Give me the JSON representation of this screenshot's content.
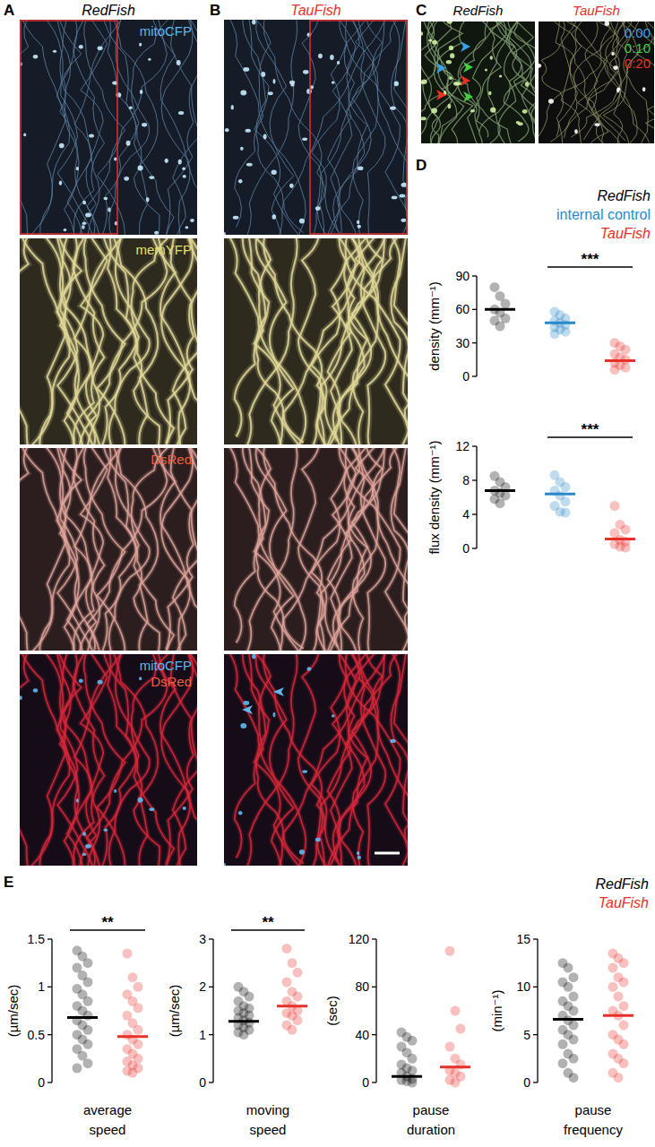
{
  "panel_labels": [
    "A",
    "B",
    "C",
    "D",
    "E"
  ],
  "images": [
    {
      "title": "RedFish",
      "title_color": "#000000",
      "rows": [
        {
          "texts": [
            {
              "text": "mitoCFP",
              "color": "#5fb8ef"
            }
          ]
        },
        {
          "texts": [
            {
              "text": "memYFP",
              "color": "#e8e070"
            }
          ]
        },
        {
          "texts": [
            {
              "text": "DsRed",
              "color": "#f06040"
            }
          ]
        },
        {
          "texts": [
            {
              "text": "mitoCFP",
              "color": "#5fb8ef"
            },
            {
              "text": "DsRed",
              "color": "#f06040"
            }
          ]
        }
      ]
    },
    {
      "title": "TauFish",
      "title_color": "#e8302a",
      "rows": []
    }
  ],
  "timelapse": {
    "titles": [
      {
        "text": "RedFish",
        "color": "#000000"
      },
      {
        "text": "TauFish",
        "color": "#e8302a"
      }
    ],
    "timestamps": [
      {
        "text": "0:00",
        "color": "#3aa0e8"
      },
      {
        "text": "0:10",
        "color": "#40d040"
      },
      {
        "text": "0:20",
        "color": "#f03020"
      }
    ]
  },
  "chart_data": [
    {
      "type": "dot",
      "y_label": "density (mm⁻¹)",
      "ylim": [
        0,
        90
      ],
      "yticks": [
        0,
        30,
        60,
        90
      ],
      "significance": {
        "label": "***",
        "groups": [
          1,
          2
        ]
      },
      "series": [
        {
          "name": "RedFish",
          "color": "#000000",
          "mean": 60,
          "values": [
            80,
            72,
            65,
            60,
            57,
            52,
            50,
            45
          ]
        },
        {
          "name": "internal control",
          "color": "#2b88c8",
          "mean": 48,
          "values": [
            58,
            55,
            52,
            50,
            48,
            46,
            44,
            42,
            40,
            38
          ]
        },
        {
          "name": "TauFish",
          "color": "#e8302a",
          "mean": 14,
          "values": [
            30,
            27,
            24,
            20,
            17,
            15,
            12,
            10,
            8,
            6
          ]
        }
      ]
    },
    {
      "type": "dot",
      "y_label": "flux density (mm⁻¹)",
      "ylim": [
        0,
        12
      ],
      "yticks": [
        0,
        4,
        8,
        12
      ],
      "significance": {
        "label": "***",
        "groups": [
          1,
          2
        ]
      },
      "series": [
        {
          "color": "#000000",
          "mean": 6.8,
          "values": [
            8.5,
            7.8,
            7.2,
            6.8,
            6.5,
            6.2,
            5.8,
            5.3
          ]
        },
        {
          "color": "#2b88c8",
          "mean": 6.4,
          "values": [
            8.6,
            7.8,
            7.2,
            6.8,
            6.2,
            5.5,
            5.0,
            4.3,
            4.2
          ]
        },
        {
          "color": "#e8302a",
          "mean": 1.1,
          "values": [
            5.0,
            2.8,
            2.2,
            1.8,
            1.0,
            0.8,
            0.5,
            0.2,
            0.1
          ]
        }
      ]
    },
    {
      "type": "dot",
      "y_label": "(µm/sec)",
      "x_label": "average speed",
      "ylim": [
        0,
        1.5
      ],
      "yticks": [
        0,
        0.5,
        1,
        1.5
      ],
      "significance": {
        "label": "**",
        "groups": [
          0,
          1
        ]
      },
      "series": [
        {
          "name": "RedFish",
          "color": "#000000",
          "mean": 0.68,
          "values": [
            1.38,
            1.32,
            1.25,
            1.2,
            1.12,
            1.05,
            0.98,
            0.92,
            0.85,
            0.8,
            0.75,
            0.7,
            0.65,
            0.6,
            0.55,
            0.5,
            0.45,
            0.4,
            0.35,
            0.28,
            0.2,
            0.15
          ]
        },
        {
          "name": "TauFish",
          "color": "#e8302a",
          "mean": 0.48,
          "values": [
            1.35,
            1.1,
            1.0,
            0.92,
            0.85,
            0.78,
            0.7,
            0.62,
            0.55,
            0.5,
            0.45,
            0.4,
            0.35,
            0.3,
            0.25,
            0.22,
            0.18,
            0.15,
            0.12,
            0.1
          ]
        }
      ]
    },
    {
      "type": "dot",
      "y_label": "(µm/sec)",
      "x_label": "moving speed",
      "ylim": [
        0,
        3
      ],
      "yticks": [
        0,
        1,
        2,
        3
      ],
      "significance": {
        "label": "**",
        "groups": [
          0,
          1
        ]
      },
      "series": [
        {
          "color": "#000000",
          "mean": 1.28,
          "values": [
            2.0,
            1.9,
            1.8,
            1.7,
            1.6,
            1.55,
            1.5,
            1.45,
            1.4,
            1.35,
            1.3,
            1.25,
            1.2,
            1.15,
            1.1,
            1.05,
            1.0
          ]
        },
        {
          "color": "#e8302a",
          "mean": 1.6,
          "values": [
            2.8,
            2.5,
            2.3,
            2.1,
            1.9,
            1.8,
            1.7,
            1.6,
            1.5,
            1.45,
            1.4,
            1.3,
            1.2,
            1.1
          ]
        }
      ]
    },
    {
      "type": "dot",
      "y_label": "(sec)",
      "x_label": "pause duration",
      "ylim": [
        0,
        120
      ],
      "yticks": [
        0,
        40,
        80,
        120
      ],
      "series": [
        {
          "color": "#000000",
          "mean": 5,
          "values": [
            42,
            38,
            35,
            30,
            25,
            20,
            15,
            12,
            10,
            8,
            5,
            3,
            2,
            1,
            0
          ]
        },
        {
          "color": "#e8302a",
          "mean": 13,
          "values": [
            110,
            60,
            45,
            30,
            20,
            15,
            10,
            8,
            5,
            2,
            0
          ]
        }
      ]
    },
    {
      "type": "dot",
      "y_label": "(min⁻¹)",
      "x_label": "pause frequency",
      "ylim": [
        0,
        15
      ],
      "yticks": [
        0,
        5,
        10,
        15
      ],
      "series": [
        {
          "color": "#000000",
          "mean": 6.6,
          "values": [
            12.5,
            12,
            11,
            10.5,
            10,
            9,
            8.5,
            8,
            7.5,
            7,
            6.5,
            6,
            5.5,
            5,
            4.5,
            4,
            3,
            2.5,
            2,
            1,
            0.5
          ]
        },
        {
          "color": "#e8302a",
          "mean": 7.0,
          "values": [
            13.5,
            13,
            12.5,
            12,
            11,
            10.5,
            10,
            9,
            8,
            7.5,
            7,
            6,
            5,
            4.5,
            4,
            3,
            2.5,
            2,
            1,
            0.5
          ]
        }
      ]
    }
  ]
}
